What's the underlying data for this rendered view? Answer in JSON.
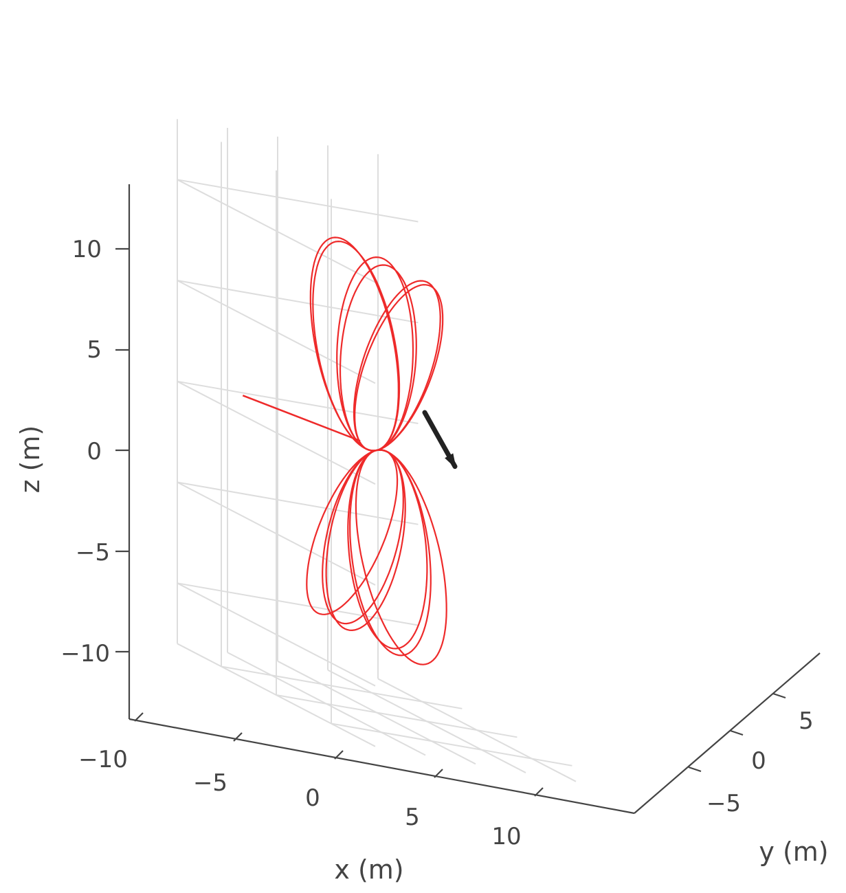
{
  "chart_data": {
    "type": "line3d",
    "title": "",
    "xlabel": "x (m)",
    "ylabel": "y (m)",
    "zlabel": "z (m)",
    "x_ticks": [
      "−10",
      "−5",
      "0",
      "5",
      "10"
    ],
    "y_ticks": [
      "−5",
      "0",
      "5"
    ],
    "z_ticks": [
      "−10",
      "−5",
      "0",
      "5",
      "10"
    ],
    "xlim": [
      -10,
      14
    ],
    "ylim": [
      -9,
      9
    ],
    "zlim": [
      -13,
      13
    ],
    "grid": true,
    "series": [
      {
        "kind": "trajectory",
        "color": "#ee2a2a",
        "description_values": {
          "loops": 12,
          "loop_radius_m": 5.2,
          "path": "particle orbit: repeated loops around the origin tilting about the field axis"
        }
      },
      {
        "kind": "vector-arrow",
        "color": "#222222",
        "from": [
          0,
          0,
          0
        ],
        "to": [
          10,
          2,
          -0.5
        ]
      }
    ],
    "colors": {
      "axis": "#444444",
      "grid": "#dddddd",
      "trajectory": "#ee2a2a",
      "arrow": "#222222"
    }
  }
}
